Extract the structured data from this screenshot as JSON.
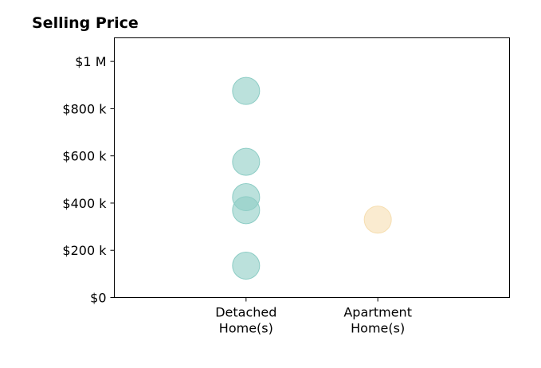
{
  "chart_data": {
    "type": "scatter",
    "title": "Selling Price",
    "xlabel": "",
    "ylabel": "",
    "categories": [
      [
        "Detached",
        "Home(s)"
      ],
      [
        "Apartment",
        "Home(s)"
      ]
    ],
    "yticks": [
      {
        "value": 0,
        "label": "$0"
      },
      {
        "value": 200000,
        "label": "$200 k"
      },
      {
        "value": 400000,
        "label": "$400 k"
      },
      {
        "value": 600000,
        "label": "$600 k"
      },
      {
        "value": 800000,
        "label": "$800 k"
      },
      {
        "value": 1000000,
        "label": "$1 M"
      }
    ],
    "ylim": [
      0,
      1100000
    ],
    "xlim": [
      -1,
      2
    ],
    "grid": false,
    "series": [
      {
        "category_index": 0,
        "color": "#8dcdc5",
        "values": [
          875000,
          575000,
          425000,
          370000,
          135000
        ]
      },
      {
        "category_index": 1,
        "color": "#f6deb0",
        "values": [
          330000
        ]
      }
    ]
  }
}
